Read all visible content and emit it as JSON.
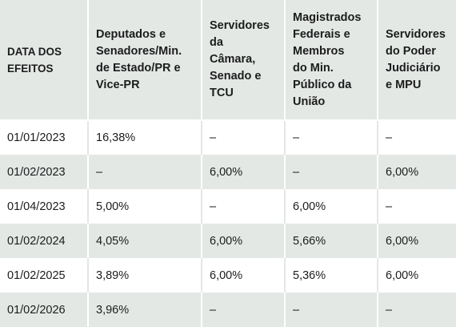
{
  "table": {
    "headers": [
      [
        "DATA DOS",
        "EFEITOS"
      ],
      [
        "Deputados e",
        "Senadores/Min.",
        "de Estado/PR e",
        "Vice-PR"
      ],
      [
        "Servidores",
        "da",
        "Câmara,",
        "Senado e",
        "TCU"
      ],
      [
        "Magistrados",
        "Federais e",
        "Membros",
        "do Min.",
        "Público da",
        "União"
      ],
      [
        "Servidores",
        "do Poder",
        "Judiciário",
        "e MPU"
      ]
    ],
    "rows": [
      [
        "01/01/2023",
        "16,38%",
        "–",
        "–",
        "–"
      ],
      [
        "01/02/2023",
        "–",
        "6,00%",
        "–",
        "6,00%"
      ],
      [
        "01/04/2023",
        "5,00%",
        "–",
        "6,00%",
        "–"
      ],
      [
        "01/02/2024",
        "4,05%",
        "6,00%",
        "5,66%",
        "6,00%"
      ],
      [
        "01/02/2025",
        "3,89%",
        "6,00%",
        "5,36%",
        "6,00%"
      ],
      [
        "01/02/2026",
        "3,96%",
        "–",
        "–",
        "–"
      ]
    ]
  },
  "colors": {
    "band": "#e3e8e5",
    "text": "#1c1c1c"
  }
}
